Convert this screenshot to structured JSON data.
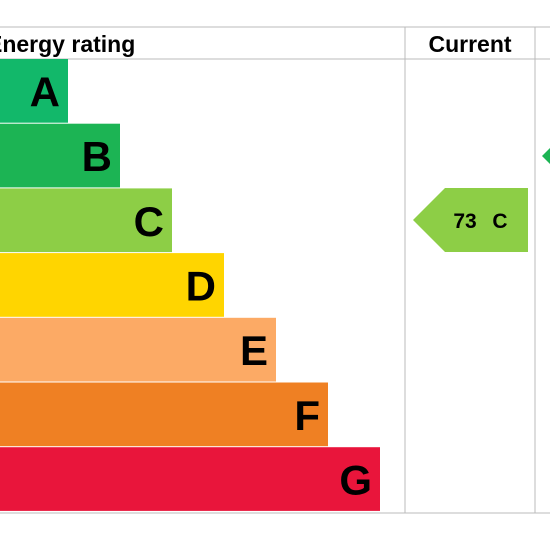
{
  "header": {
    "title": "Energy rating",
    "current": "Current"
  },
  "bands": [
    {
      "letter": "A",
      "color": "#12b86a"
    },
    {
      "letter": "B",
      "color": "#1cb454"
    },
    {
      "letter": "C",
      "color": "#8dce46"
    },
    {
      "letter": "D",
      "color": "#ffd500"
    },
    {
      "letter": "E",
      "color": "#fcaa65"
    },
    {
      "letter": "F",
      "color": "#ef8023"
    },
    {
      "letter": "G",
      "color": "#e9153b"
    }
  ],
  "current": {
    "score": 73,
    "band": "C",
    "color": "#8dce46"
  },
  "potential": {
    "color": "#1cb454"
  }
}
